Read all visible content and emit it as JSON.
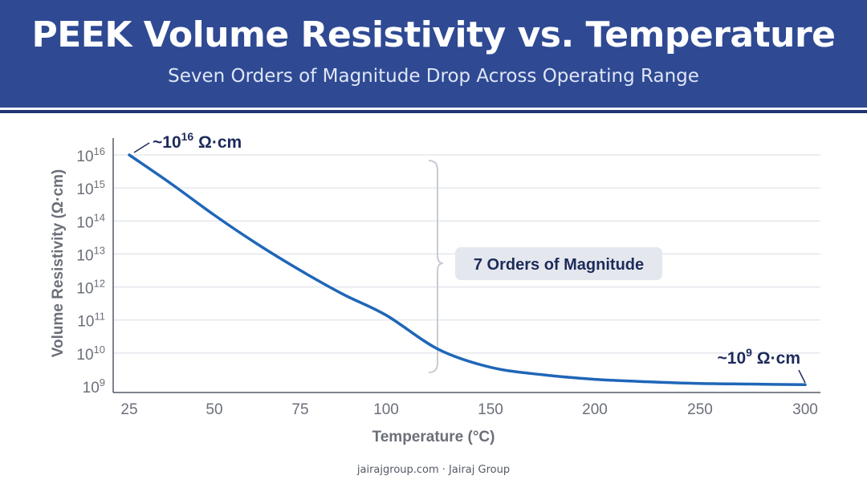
{
  "header": {
    "title": "PEEK Volume Resistivity vs. Temperature",
    "subtitle": "Seven Orders of Magnitude Drop Across Operating Range"
  },
  "footer": {
    "text": "jairajgroup.com · Jairaj Group"
  },
  "colors": {
    "banner": "#2f4a93",
    "line": "#1f66b8",
    "annotation": "#1d2b5a",
    "axis_label": "#6b6f78",
    "grid": "#d9dde4",
    "callout_bg": "#e4e8ee"
  },
  "chart_data": {
    "type": "line",
    "xlabel": "Temperature (°C)",
    "ylabel": "Volume Resistivity (Ω·cm)",
    "y_scale": "log",
    "ylim": [
      1000000000.0,
      1e+16
    ],
    "x_ticks": [
      "25",
      "50",
      "75",
      "100",
      "150",
      "200",
      "250",
      "300"
    ],
    "y_ticks": [
      {
        "base": "10",
        "exp": "9"
      },
      {
        "base": "10",
        "exp": "10"
      },
      {
        "base": "10",
        "exp": "11"
      },
      {
        "base": "10",
        "exp": "12"
      },
      {
        "base": "10",
        "exp": "13"
      },
      {
        "base": "10",
        "exp": "14"
      },
      {
        "base": "10",
        "exp": "15"
      },
      {
        "base": "10",
        "exp": "16"
      }
    ],
    "grid": true,
    "series": [
      {
        "x": [
          25,
          37.5,
          50,
          62.5,
          75,
          87.5,
          100,
          125,
          150,
          175,
          200,
          225,
          250,
          275,
          300
        ],
        "y": [
          1e+16,
          1300000000000000.0,
          150000000000000.0,
          20000000000000.0,
          3200000000000.0,
          600000000000.0,
          140000000000.0,
          13000000000.0,
          3700000000.0,
          2200000000.0,
          1600000000.0,
          1350000000.0,
          1200000000.0,
          1150000000.0,
          1100000000.0
        ]
      }
    ],
    "annotations": {
      "start": {
        "prefix": "~10",
        "exp": "16",
        "unit": " Ω·cm"
      },
      "end": {
        "prefix": "~10",
        "exp": "9",
        "unit": " Ω·cm"
      },
      "bracket_label": "7 Orders of Magnitude"
    }
  }
}
